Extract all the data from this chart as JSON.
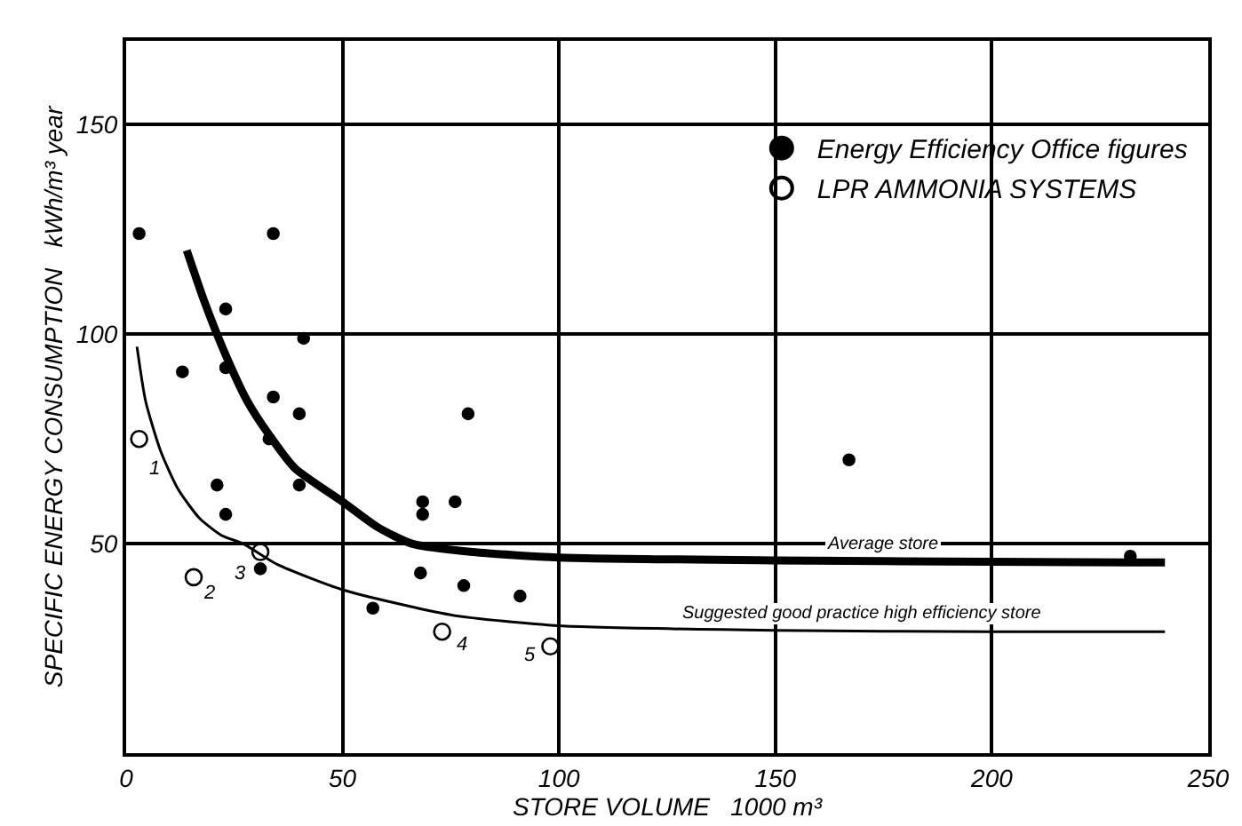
{
  "chart_data": {
    "type": "scatter",
    "xlabel": "STORE VOLUME   1000 m³",
    "ylabel": "SPECIFIC ENERGY CONSUMPTION   kWh/m³ year",
    "xlim": [
      0,
      250
    ],
    "xticks": [
      0,
      50,
      100,
      150,
      200,
      250
    ],
    "ylim": [
      0,
      170
    ],
    "yticks": [
      50,
      100,
      150
    ],
    "grid": true,
    "legend": "top right",
    "series": [
      {
        "name": "Energy Efficiency Office figures",
        "color": "#000000",
        "marker": "circle",
        "x": [
          3,
          34,
          23,
          41,
          13,
          23,
          34,
          40,
          79,
          33,
          21,
          40,
          23,
          68.5,
          68.5,
          76,
          31,
          68,
          78,
          91,
          57,
          167,
          232
        ],
        "values": [
          124,
          124,
          106,
          99,
          91,
          92,
          85,
          81,
          81,
          75,
          64,
          64,
          57,
          60,
          57,
          60,
          44,
          43,
          40,
          37.5,
          34.6,
          70,
          47
        ]
      },
      {
        "name": "LPR AMMONIA SYSTEMS",
        "color": "#000000",
        "marker": "circle-open",
        "x": [
          3,
          15.6,
          31,
          73,
          98
        ],
        "values": [
          75,
          42,
          48,
          29,
          25.5
        ]
      },
      {
        "type": "line",
        "color": "#000000",
        "line_style": "solid",
        "x": [
          14,
          18,
          23,
          28,
          33,
          39,
          50,
          58,
          66,
          80,
          100,
          150,
          200,
          240
        ],
        "values": [
          120,
          108,
          95,
          84,
          76,
          68,
          60,
          54,
          50,
          48,
          46.7,
          46,
          45.7,
          45.5
        ]
      },
      {
        "type": "line",
        "color": "#000000",
        "line_style": "solid",
        "x": [
          2.5,
          4.5,
          8,
          12,
          17,
          22,
          27,
          35,
          50,
          75,
          100,
          150,
          200,
          240
        ],
        "values": [
          97,
          84,
          72,
          63,
          56,
          52,
          50,
          45,
          39,
          33,
          30.4,
          29.3,
          29,
          29
        ]
      }
    ],
    "annotations": [
      {
        "text": "1",
        "x": 6.5,
        "y": 68
      },
      {
        "text": "2",
        "x": 19,
        "y": 38
      },
      {
        "text": "3",
        "x": 26.5,
        "y": 43
      },
      {
        "text": "4",
        "x": 77.5,
        "y": 26
      },
      {
        "text": "5",
        "x": 93.5,
        "y": 23.5
      },
      {
        "text": "Average store",
        "x": 175,
        "y": 45.8
      },
      {
        "text": "Suggested good practice high efficiency store",
        "x": 170,
        "y": 29.1
      }
    ]
  }
}
